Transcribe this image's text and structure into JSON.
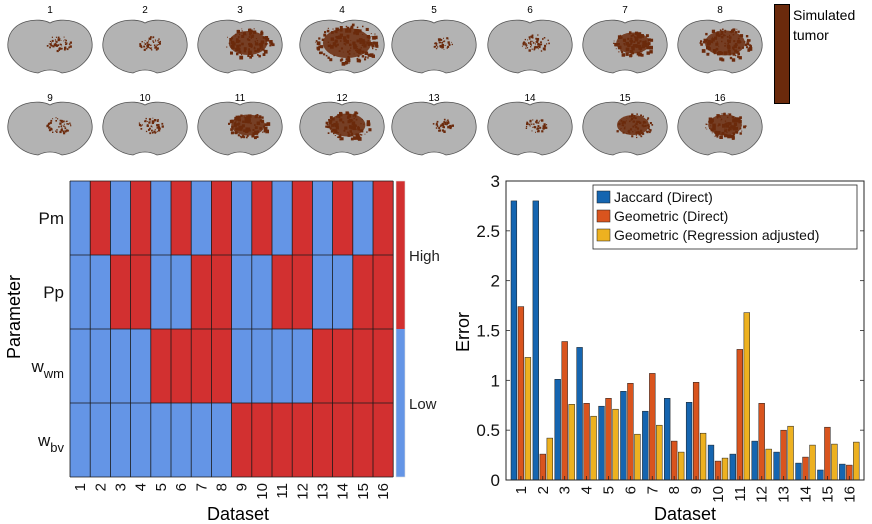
{
  "brain_panel": {
    "labels": [
      "1",
      "2",
      "3",
      "4",
      "5",
      "6",
      "7",
      "8",
      "9",
      "10",
      "11",
      "12",
      "13",
      "14",
      "15",
      "16"
    ],
    "tumor_color": "#6b2a0c",
    "brain_color": "#b3b3b3",
    "legend_label": "Simulated tumor"
  },
  "chart_data": [
    {
      "type": "heatmap",
      "xlabel": "Dataset",
      "ylabel": "Parameter",
      "x_categories": [
        "1",
        "2",
        "3",
        "4",
        "5",
        "6",
        "7",
        "8",
        "9",
        "10",
        "11",
        "12",
        "13",
        "14",
        "15",
        "16"
      ],
      "y_categories": [
        "Pm",
        "Pp",
        "w_wm",
        "w_bv"
      ],
      "y_tick_labels": [
        {
          "main": "Pm",
          "sub": ""
        },
        {
          "main": "Pp",
          "sub": ""
        },
        {
          "main": "w",
          "sub": "wm"
        },
        {
          "main": "w",
          "sub": "bv"
        }
      ],
      "values": [
        [
          0,
          1,
          0,
          1,
          0,
          1,
          0,
          1,
          0,
          1,
          0,
          1,
          0,
          1,
          0,
          1
        ],
        [
          0,
          0,
          1,
          1,
          0,
          0,
          1,
          1,
          0,
          0,
          1,
          1,
          0,
          0,
          1,
          1
        ],
        [
          0,
          0,
          0,
          0,
          1,
          1,
          1,
          1,
          0,
          0,
          0,
          0,
          1,
          1,
          1,
          1
        ],
        [
          0,
          0,
          0,
          0,
          0,
          0,
          0,
          0,
          1,
          1,
          1,
          1,
          1,
          1,
          1,
          1
        ]
      ],
      "colorbar": {
        "high_label": "High",
        "low_label": "Low"
      },
      "colors": {
        "high": "#d23030",
        "low": "#6495e6"
      }
    },
    {
      "type": "bar",
      "xlabel": "Dataset",
      "ylabel": "Error",
      "ylim": [
        0,
        3
      ],
      "yticks": [
        "0",
        "0.5",
        "1",
        "1.5",
        "2",
        "2.5",
        "3"
      ],
      "categories": [
        "1",
        "2",
        "3",
        "4",
        "5",
        "6",
        "7",
        "8",
        "9",
        "10",
        "11",
        "12",
        "13",
        "14",
        "15",
        "16"
      ],
      "series": [
        {
          "name": "Jaccard (Direct)",
          "color": "#1565b0",
          "values": [
            2.8,
            2.8,
            1.01,
            1.33,
            0.74,
            0.89,
            0.69,
            0.82,
            0.78,
            0.35,
            0.26,
            0.39,
            0.28,
            0.17,
            0.1,
            0.16
          ]
        },
        {
          "name": "Geometric (Direct)",
          "color": "#d9541e",
          "values": [
            1.74,
            0.26,
            1.39,
            0.77,
            0.82,
            0.97,
            1.07,
            0.39,
            0.98,
            0.19,
            1.31,
            0.77,
            0.5,
            0.23,
            0.53,
            0.15
          ]
        },
        {
          "name": "Geometric (Regression adjusted)",
          "color": "#edb120",
          "values": [
            1.23,
            0.42,
            0.76,
            0.64,
            0.71,
            0.46,
            0.55,
            0.28,
            0.47,
            0.22,
            1.68,
            0.31,
            0.54,
            0.35,
            0.36,
            0.38
          ]
        }
      ]
    }
  ]
}
